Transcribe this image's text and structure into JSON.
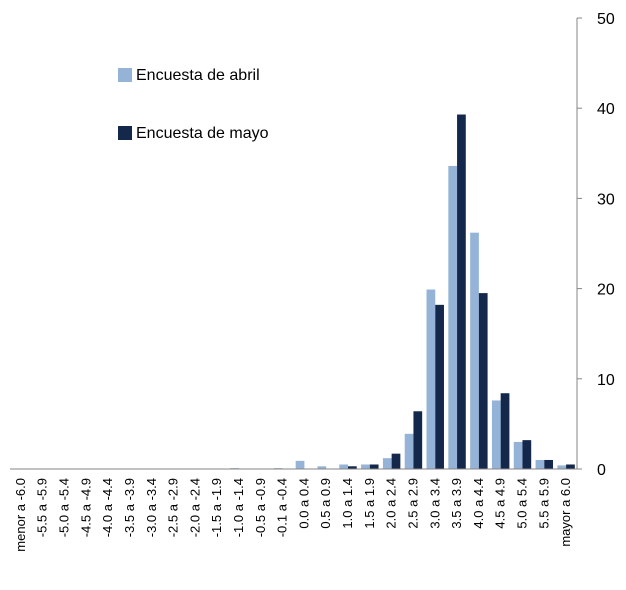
{
  "chart_data": {
    "type": "bar",
    "categories": [
      "menor a -6.0",
      "-5.5 a -5.9",
      "-5.0 a -5.4",
      "-4.5 a -4.9",
      "-4.0 a -4.4",
      "-3.5 a -3.9",
      "-3.0 a -3.4",
      "-2.5 a -2.9",
      "-2.0 a -2.4",
      "-1.5 a -1.9",
      "-1.0 a -1.4",
      "-0.5 a -0.9",
      "-0.1 a -0.4",
      "0.0 a 0.4",
      "0.5 a 0.9",
      "1.0 a 1.4",
      "1.5 a 1.9",
      "2.0 a 2.4",
      "2.5 a 2.9",
      "3.0 a 3.4",
      "3.5 a 3.9",
      "4.0 a 4.4",
      "4.5 a 4.9",
      "5.0 a 5.4",
      "5.5 a 5.9",
      "mayor a 6.0"
    ],
    "series": [
      {
        "name": "Encuesta de abril",
        "color": "#95b3d7",
        "values": [
          0,
          0,
          0,
          0,
          0,
          0,
          0,
          0,
          0,
          0,
          0.1,
          0,
          0.1,
          0.9,
          0.3,
          0.5,
          0.5,
          1.2,
          3.9,
          19.9,
          33.6,
          26.2,
          7.6,
          3.0,
          1.0,
          0.4
        ]
      },
      {
        "name": "Encuesta de mayo",
        "color": "#14284b",
        "values": [
          0,
          0,
          0,
          0,
          0,
          0,
          0,
          0,
          0,
          0,
          0,
          0,
          0,
          0,
          0,
          0.3,
          0.5,
          1.7,
          6.4,
          18.2,
          39.3,
          19.5,
          8.4,
          3.2,
          1.0,
          0.5
        ]
      }
    ],
    "ylim": [
      0,
      50
    ],
    "yticks": [
      0,
      10,
      20,
      30,
      40,
      50
    ],
    "y_axis_side": "right",
    "legend": "upper left"
  }
}
